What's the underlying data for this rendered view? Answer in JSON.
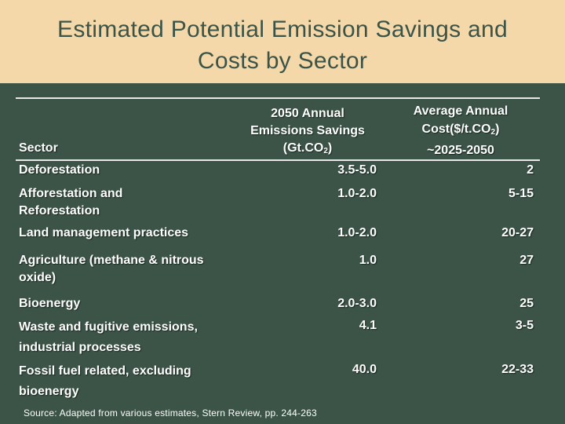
{
  "slide": {
    "title_line1": "Estimated Potential Emission Savings and",
    "title_line2": "Costs by Sector"
  },
  "table": {
    "headers": {
      "sector": "Sector",
      "savings": {
        "line1": "2050 Annual",
        "line2": "Emissions Savings",
        "line3_pre": "(Gt.CO",
        "line3_sub": "2",
        "line3_post": ")"
      },
      "cost": {
        "line1": "Average Annual",
        "line2_pre": "Cost($/t.CO",
        "line2_sub": "2",
        "line2_post": ")",
        "line3": "~2025-2050"
      }
    },
    "rows": [
      {
        "sector": [
          "Deforestation"
        ],
        "savings": "3.5-5.0",
        "cost": "2"
      },
      {
        "sector": [
          "Afforestation and",
          "Reforestation"
        ],
        "savings": "1.0-2.0",
        "cost": "5-15"
      },
      {
        "sector": [
          "Land management practices"
        ],
        "savings": "1.0-2.0",
        "cost": "20-27"
      },
      {
        "sector": [
          "Agriculture (methane & nitrous",
          "oxide)"
        ],
        "savings": "1.0",
        "cost": "27"
      },
      {
        "sector": [
          "Bioenergy"
        ],
        "savings": "2.0-3.0",
        "cost": "25"
      },
      {
        "sector": [
          "Waste and fugitive emissions,",
          "industrial processes"
        ],
        "savings": "4.1",
        "cost": "3-5"
      },
      {
        "sector": [
          "Fossil fuel related, excluding",
          "bioenergy"
        ],
        "savings": "40.0",
        "cost": "22-33"
      }
    ]
  },
  "source": "Source:  Adapted from various estimates, Stern Review, pp. 244-263",
  "colors": {
    "background": "#3b5447",
    "title_band": "#f4d8aa",
    "title_text": "#3b5447",
    "text": "#ffffff"
  }
}
